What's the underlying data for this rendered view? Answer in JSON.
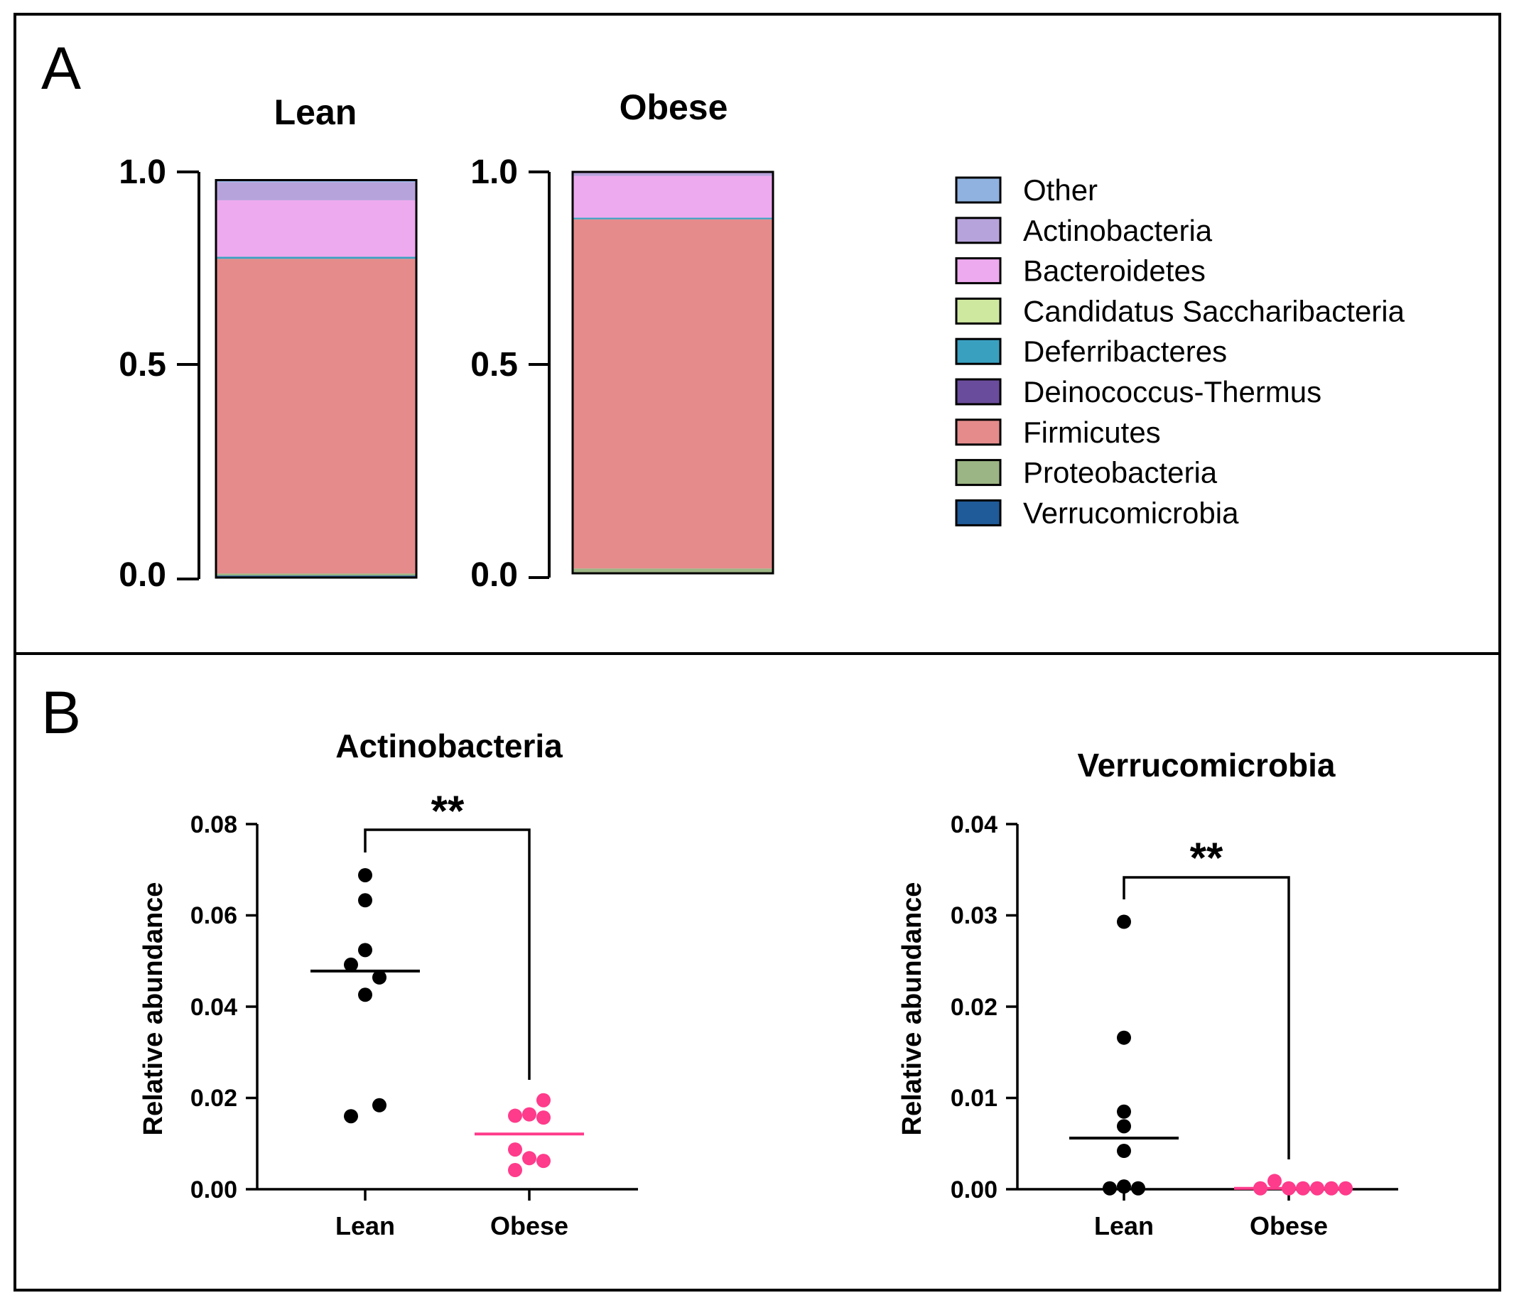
{
  "panels": {
    "A": {
      "label": "A"
    },
    "B": {
      "label": "B"
    }
  },
  "legend": [
    {
      "name": "Other",
      "color": "#8fb2e0"
    },
    {
      "name": "Actinobacteria",
      "color": "#b7a3dc"
    },
    {
      "name": "Bacteroidetes",
      "color": "#eeaaee"
    },
    {
      "name": "Candidatus Saccharibacteria",
      "color": "#cfe8a0"
    },
    {
      "name": "Deferribacteres",
      "color": "#3aa0c0"
    },
    {
      "name": "Deinococcus-Thermus",
      "color": "#6a4c9c"
    },
    {
      "name": "Firmicutes",
      "color": "#e58b8b"
    },
    {
      "name": "Proteobacteria",
      "color": "#9cb584"
    },
    {
      "name": "Verrucomicrobia",
      "color": "#1f5a99"
    }
  ],
  "chart_data": [
    {
      "type": "bar",
      "stacked": true,
      "title": "Lean",
      "ylim": [
        0,
        1.0
      ],
      "yticks": [
        "0.0",
        "0.5",
        "1.0"
      ],
      "stack": [
        {
          "name": "Verrucomicrobia",
          "value": 0.005
        },
        {
          "name": "Proteobacteria",
          "value": 0.005
        },
        {
          "name": "Firmicutes",
          "value": 0.78
        },
        {
          "name": "Deferribacteres",
          "value": 0.005
        },
        {
          "name": "Bacteroidetes",
          "value": 0.14
        },
        {
          "name": "Actinobacteria",
          "value": 0.045
        },
        {
          "name": "Other",
          "value": 0.005
        }
      ]
    },
    {
      "type": "bar",
      "stacked": true,
      "title": "Obese",
      "ylim": [
        0,
        1.0
      ],
      "yticks": [
        "0.0",
        "0.5",
        "1.0"
      ],
      "stack": [
        {
          "name": "Proteobacteria",
          "value": 0.012
        },
        {
          "name": "Firmicutes",
          "value": 0.87
        },
        {
          "name": "Deferribacteres",
          "value": 0.004
        },
        {
          "name": "Bacteroidetes",
          "value": 0.104
        },
        {
          "name": "Actinobacteria",
          "value": 0.01
        }
      ]
    },
    {
      "type": "scatter",
      "title": "Actinobacteria",
      "ylabel": "Relative abundance",
      "ylim": [
        0,
        0.08
      ],
      "yticks": [
        "0.00",
        "0.02",
        "0.04",
        "0.06",
        "0.08"
      ],
      "categories": [
        "Lean",
        "Obese"
      ],
      "significance": "**",
      "groups": [
        {
          "name": "Lean",
          "color": "#000000",
          "mean": 0.0478,
          "points": [
            {
              "offset": 0,
              "value": 0.0688
            },
            {
              "offset": 0,
              "value": 0.0633
            },
            {
              "offset": 0,
              "value": 0.0524
            },
            {
              "offset": -1,
              "value": 0.0492
            },
            {
              "offset": 1,
              "value": 0.0464
            },
            {
              "offset": 0,
              "value": 0.0426
            },
            {
              "offset": 1,
              "value": 0.0184
            },
            {
              "offset": -1,
              "value": 0.016
            }
          ]
        },
        {
          "name": "Obese",
          "color": "#ff3b8b",
          "mean": 0.0121,
          "points": [
            {
              "offset": 1,
              "value": 0.0195
            },
            {
              "offset": -1,
              "value": 0.0161
            },
            {
              "offset": 0,
              "value": 0.0164
            },
            {
              "offset": 1,
              "value": 0.0157
            },
            {
              "offset": -1,
              "value": 0.0087
            },
            {
              "offset": 0,
              "value": 0.0068
            },
            {
              "offset": 1,
              "value": 0.0062
            },
            {
              "offset": -1,
              "value": 0.0042
            }
          ]
        }
      ]
    },
    {
      "type": "scatter",
      "title": "Verrucomicrobia",
      "ylabel": "Relative abundance",
      "ylim": [
        0,
        0.04
      ],
      "yticks": [
        "0.00",
        "0.01",
        "0.02",
        "0.03",
        "0.04"
      ],
      "categories": [
        "Lean",
        "Obese"
      ],
      "significance": "**",
      "groups": [
        {
          "name": "Lean",
          "color": "#000000",
          "mean": 0.0056,
          "points": [
            {
              "offset": 0,
              "value": 0.0293
            },
            {
              "offset": 0,
              "value": 0.0166
            },
            {
              "offset": 0,
              "value": 0.0085
            },
            {
              "offset": 0,
              "value": 0.0069
            },
            {
              "offset": 0,
              "value": 0.0042
            },
            {
              "offset": -1,
              "value": 0.0001
            },
            {
              "offset": 0,
              "value": 0.0003
            },
            {
              "offset": 1,
              "value": 0.0001
            }
          ]
        },
        {
          "name": "Obese",
          "color": "#ff3b8b",
          "mean": 0.0001,
          "points": [
            {
              "offset": -2,
              "value": 0.0001
            },
            {
              "offset": -1,
              "value": 0.0009
            },
            {
              "offset": 0,
              "value": 0.0001
            },
            {
              "offset": 1,
              "value": 0.0001
            },
            {
              "offset": 2,
              "value": 0.0001
            },
            {
              "offset": 3,
              "value": 0.0001
            },
            {
              "offset": 4,
              "value": 0.0001
            }
          ]
        }
      ]
    }
  ]
}
